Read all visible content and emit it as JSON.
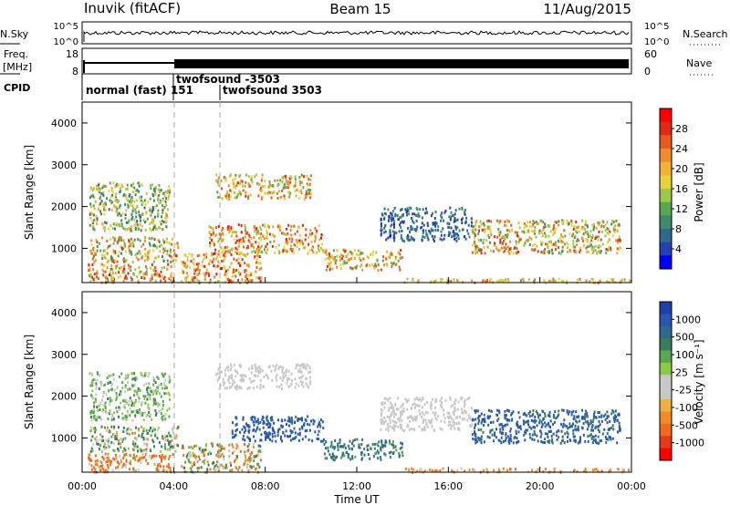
{
  "header": {
    "station": "Inuvik (fitACF)",
    "beam": "Beam 15",
    "date": "11/Aug/2015"
  },
  "noise_panel": {
    "left_label": "N.Sky",
    "right_label": "N.Search",
    "left_ticks": [
      "10^5",
      "10^0"
    ],
    "right_ticks": [
      "10^5",
      "10^0"
    ]
  },
  "freq_panel": {
    "left_label_line1": "Freq.",
    "left_label_line2": "[MHz]",
    "right_label": "Nave",
    "left_ticks": [
      "18",
      "8"
    ],
    "right_ticks": [
      "60",
      "0"
    ]
  },
  "cpid_panel": {
    "label": "CPID",
    "modes": [
      {
        "text": "normal (fast) 151",
        "row": "low"
      },
      {
        "text": "twofsound -3503",
        "row": "high"
      },
      {
        "text": "twofsound 3503",
        "row": "low"
      }
    ]
  },
  "chart_data": [
    {
      "type": "heatmap",
      "name": "power",
      "xlabel": "",
      "ylabel": "Slant Range [km]",
      "xlim_hours": [
        0,
        24
      ],
      "ylim_km": [
        180,
        4500
      ],
      "yticks": [
        1000,
        2000,
        3000,
        4000
      ],
      "colorbar": {
        "label": "Power [dB]",
        "ticks": [
          "4",
          "8",
          "12",
          "16",
          "20",
          "24",
          "28"
        ],
        "colors": [
          "#0000ff",
          "#2540b0",
          "#2e6a8e",
          "#3d8a6c",
          "#5aa653",
          "#9cc84a",
          "#e6d23a",
          "#f2b233",
          "#f08a2a",
          "#e85a20",
          "#e02a15",
          "#ff0000"
        ]
      },
      "scatter_regions": [
        {
          "t0": 0.2,
          "t1": 4.0,
          "r0": 200,
          "r1": 650,
          "v0": 14,
          "v1": 30
        },
        {
          "t0": 0.3,
          "t1": 4.2,
          "r0": 700,
          "r1": 1300,
          "v0": 10,
          "v1": 28
        },
        {
          "t0": 0.3,
          "t1": 3.8,
          "r0": 1450,
          "r1": 2600,
          "v0": 8,
          "v1": 22
        },
        {
          "t0": 4.3,
          "t1": 7.8,
          "r0": 200,
          "r1": 900,
          "v0": 16,
          "v1": 30
        },
        {
          "t0": 5.5,
          "t1": 10.5,
          "r0": 900,
          "r1": 1600,
          "v0": 14,
          "v1": 30
        },
        {
          "t0": 5.8,
          "t1": 10.0,
          "r0": 2200,
          "r1": 2800,
          "v0": 12,
          "v1": 28
        },
        {
          "t0": 10.5,
          "t1": 14.0,
          "r0": 500,
          "r1": 1000,
          "v0": 12,
          "v1": 28
        },
        {
          "t0": 14.0,
          "t1": 24.0,
          "r0": 200,
          "r1": 300,
          "v0": 14,
          "v1": 26
        },
        {
          "t0": 17.0,
          "t1": 23.5,
          "r0": 900,
          "r1": 1700,
          "v0": 10,
          "v1": 28
        },
        {
          "t0": 13.0,
          "t1": 17.0,
          "r0": 1200,
          "r1": 2000,
          "v0": 4,
          "v1": 12
        }
      ]
    },
    {
      "type": "heatmap",
      "name": "velocity",
      "xlabel": "Time UT",
      "ylabel": "Slant Range [km]",
      "xlim_hours": [
        0,
        24
      ],
      "ylim_km": [
        180,
        4500
      ],
      "yticks": [
        1000,
        2000,
        3000,
        4000
      ],
      "xticks": [
        "00:00",
        "04:00",
        "08:00",
        "12:00",
        "16:00",
        "20:00",
        "00:00"
      ],
      "colorbar": {
        "label": "Velocity [m s⁻¹]",
        "ticks": [
          "1000",
          "500",
          "100",
          "25",
          "-25",
          "-100",
          "-500",
          "-1000"
        ],
        "colors": [
          "#1f3fa8",
          "#2a55b0",
          "#2e6a8e",
          "#3a7d5c",
          "#5aa653",
          "#8ccc44",
          "#c8c8c8",
          "#c8c8c8",
          "#f0b040",
          "#f08a2a",
          "#f06a20",
          "#e83a18",
          "#ff0000"
        ]
      },
      "scatter_regions": [
        {
          "t0": 0.2,
          "t1": 4.0,
          "r0": 200,
          "r1": 650,
          "v0": -400,
          "v1": 50
        },
        {
          "t0": 0.3,
          "t1": 4.2,
          "r0": 700,
          "r1": 1300,
          "v0": -60,
          "v1": 200
        },
        {
          "t0": 0.3,
          "t1": 3.8,
          "r0": 1450,
          "r1": 2600,
          "v0": -20,
          "v1": 120
        },
        {
          "t0": 4.3,
          "t1": 7.8,
          "r0": 200,
          "r1": 900,
          "v0": -150,
          "v1": 150
        },
        {
          "t0": 6.5,
          "t1": 10.5,
          "r0": 950,
          "r1": 1550,
          "v0": 300,
          "v1": 1000
        },
        {
          "t0": 5.8,
          "t1": 10.0,
          "r0": 2200,
          "r1": 2800,
          "v0": -20,
          "v1": 20
        },
        {
          "t0": 10.5,
          "t1": 14.0,
          "r0": 500,
          "r1": 1000,
          "v0": 80,
          "v1": 400
        },
        {
          "t0": 14.0,
          "t1": 24.0,
          "r0": 200,
          "r1": 300,
          "v0": -120,
          "v1": 0
        },
        {
          "t0": 17.0,
          "t1": 23.5,
          "r0": 900,
          "r1": 1700,
          "v0": 100,
          "v1": 1000
        },
        {
          "t0": 13.0,
          "t1": 17.0,
          "r0": 1200,
          "r1": 2000,
          "v0": -20,
          "v1": 20
        }
      ]
    }
  ]
}
